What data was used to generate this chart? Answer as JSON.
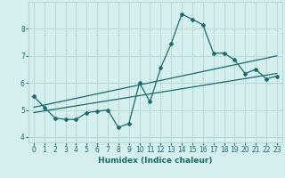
{
  "xlabel": "Humidex (Indice chaleur)",
  "bg_color": "#d5eeee",
  "grid_color": "#b8d8d8",
  "line_color": "#1a6b6b",
  "marker_color": "#1a6b6b",
  "xlim": [
    -0.5,
    23.5
  ],
  "ylim": [
    3.8,
    9.0
  ],
  "xticks": [
    0,
    1,
    2,
    3,
    4,
    5,
    6,
    7,
    8,
    9,
    10,
    11,
    12,
    13,
    14,
    15,
    16,
    17,
    18,
    19,
    20,
    21,
    22,
    23
  ],
  "yticks": [
    4,
    5,
    6,
    7,
    8
  ],
  "line1_x": [
    0,
    1,
    2,
    3,
    4,
    5,
    6,
    7,
    8,
    9,
    10,
    11,
    12,
    13,
    14,
    15,
    16,
    17,
    18,
    19,
    20,
    21,
    22,
    23
  ],
  "line1_y": [
    5.5,
    5.1,
    4.7,
    4.65,
    4.65,
    4.9,
    4.95,
    5.0,
    4.35,
    4.5,
    6.0,
    5.3,
    6.55,
    7.45,
    8.55,
    8.35,
    8.15,
    7.1,
    7.1,
    6.85,
    6.35,
    6.5,
    6.15,
    6.25
  ],
  "line2_x": [
    0,
    23
  ],
  "line2_y": [
    5.1,
    7.0
  ],
  "line3_x": [
    0,
    23
  ],
  "line3_y": [
    4.9,
    6.35
  ]
}
